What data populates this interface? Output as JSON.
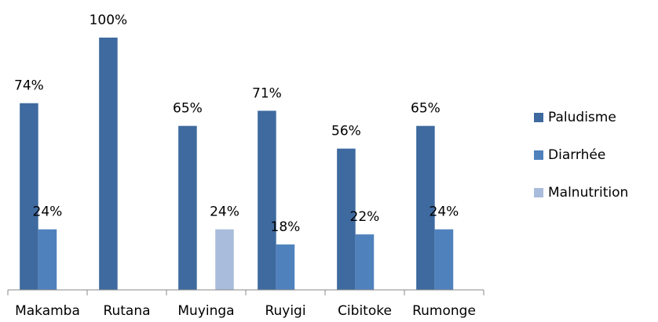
{
  "chart_data": {
    "type": "bar",
    "categories": [
      "Makamba",
      "Rutana",
      "Muyinga",
      "Ruyigi",
      "Cibitoke",
      "Rumonge"
    ],
    "series": [
      {
        "name": "Paludisme",
        "color": "#3e6a9f",
        "values": [
          74,
          100,
          65,
          71,
          56,
          65
        ],
        "value_labels": [
          "74%",
          "100%",
          "65%",
          "71%",
          "56%",
          "65%"
        ]
      },
      {
        "name": "Diarrhée",
        "color": "#4f81bd",
        "values": [
          24,
          null,
          null,
          18,
          22,
          24
        ],
        "value_labels": [
          "24%",
          null,
          null,
          "18%",
          "22%",
          "24%"
        ]
      },
      {
        "name": "Malnutrition",
        "color": "#a9bcdb",
        "values": [
          null,
          null,
          24,
          null,
          null,
          null
        ],
        "value_labels": [
          null,
          null,
          "24%",
          null,
          null,
          null
        ]
      }
    ],
    "ylim": [
      0,
      100
    ],
    "legend": "right"
  }
}
